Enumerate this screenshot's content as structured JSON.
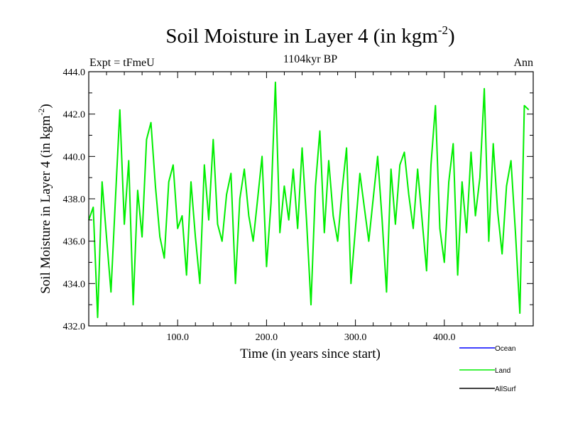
{
  "chart_data": {
    "type": "line",
    "title": "Soil Moisture in Layer 4 (in kgm",
    "title_sup": "-2",
    "title_end": ")",
    "subtitle": "1104kyr BP",
    "left_label": "Expt = tFmeU",
    "right_label": "Ann",
    "xlabel": "Time (in years since start)",
    "ylabel": "Soil Moisture in Layer 4 (in kgm",
    "ylabel_sup": "-2",
    "ylabel_end": ")",
    "xlim": [
      0,
      500
    ],
    "ylim": [
      432.0,
      444.0
    ],
    "xticks": [
      100,
      200,
      300,
      400
    ],
    "xtick_labels": [
      "100.0",
      "200.0",
      "300.0",
      "400.0"
    ],
    "yticks": [
      432,
      434,
      436,
      438,
      440,
      442,
      444
    ],
    "ytick_labels": [
      "432.0",
      "434.0",
      "436.0",
      "438.0",
      "440.0",
      "442.0",
      "444.0"
    ],
    "legend_position": "bottom-right",
    "series": [
      {
        "name": "Ocean",
        "color": "#0000ff",
        "values": []
      },
      {
        "name": "Land",
        "color": "#00ee00",
        "x": [
          0,
          5,
          10,
          15,
          20,
          25,
          30,
          35,
          40,
          45,
          50,
          55,
          60,
          65,
          70,
          75,
          80,
          85,
          90,
          95,
          100,
          105,
          110,
          115,
          120,
          125,
          130,
          135,
          140,
          145,
          150,
          155,
          160,
          165,
          170,
          175,
          180,
          185,
          190,
          195,
          200,
          205,
          210,
          215,
          220,
          225,
          230,
          235,
          240,
          245,
          250,
          255,
          260,
          265,
          270,
          275,
          280,
          285,
          290,
          295,
          300,
          305,
          310,
          315,
          320,
          325,
          330,
          335,
          340,
          345,
          350,
          355,
          360,
          365,
          370,
          375,
          380,
          385,
          390,
          395,
          400,
          405,
          410,
          415,
          420,
          425,
          430,
          435,
          440,
          445,
          450,
          455,
          460,
          465,
          470,
          475,
          480,
          485,
          490,
          495
        ],
        "values": [
          437.0,
          437.6,
          432.4,
          438.8,
          436.2,
          433.6,
          438.0,
          442.2,
          436.8,
          439.8,
          433.0,
          438.4,
          436.2,
          440.8,
          441.6,
          438.6,
          436.2,
          435.2,
          438.8,
          439.6,
          436.6,
          437.2,
          434.4,
          438.8,
          436.2,
          434.0,
          439.6,
          437.0,
          440.8,
          436.8,
          436.0,
          438.2,
          439.2,
          434.0,
          438.0,
          439.4,
          437.2,
          436.0,
          438.0,
          440.0,
          434.8,
          437.8,
          443.5,
          436.4,
          438.6,
          437.0,
          439.4,
          436.6,
          440.4,
          437.0,
          433.0,
          438.6,
          441.2,
          436.4,
          439.8,
          437.2,
          436.0,
          438.4,
          440.4,
          434.0,
          436.6,
          439.2,
          437.6,
          436.0,
          438.0,
          440.0,
          437.0,
          433.6,
          439.4,
          436.8,
          439.6,
          440.2,
          438.2,
          436.6,
          439.4,
          437.0,
          434.6,
          439.6,
          442.4,
          436.6,
          435.0,
          438.8,
          440.6,
          434.4,
          438.8,
          436.4,
          440.2,
          437.2,
          439.0,
          443.2,
          436.0,
          440.6,
          437.4,
          435.4,
          438.6,
          439.8,
          436.4,
          432.6,
          442.4,
          442.2
        ]
      },
      {
        "name": "AllSurf",
        "color": "#000000",
        "values": []
      }
    ]
  }
}
